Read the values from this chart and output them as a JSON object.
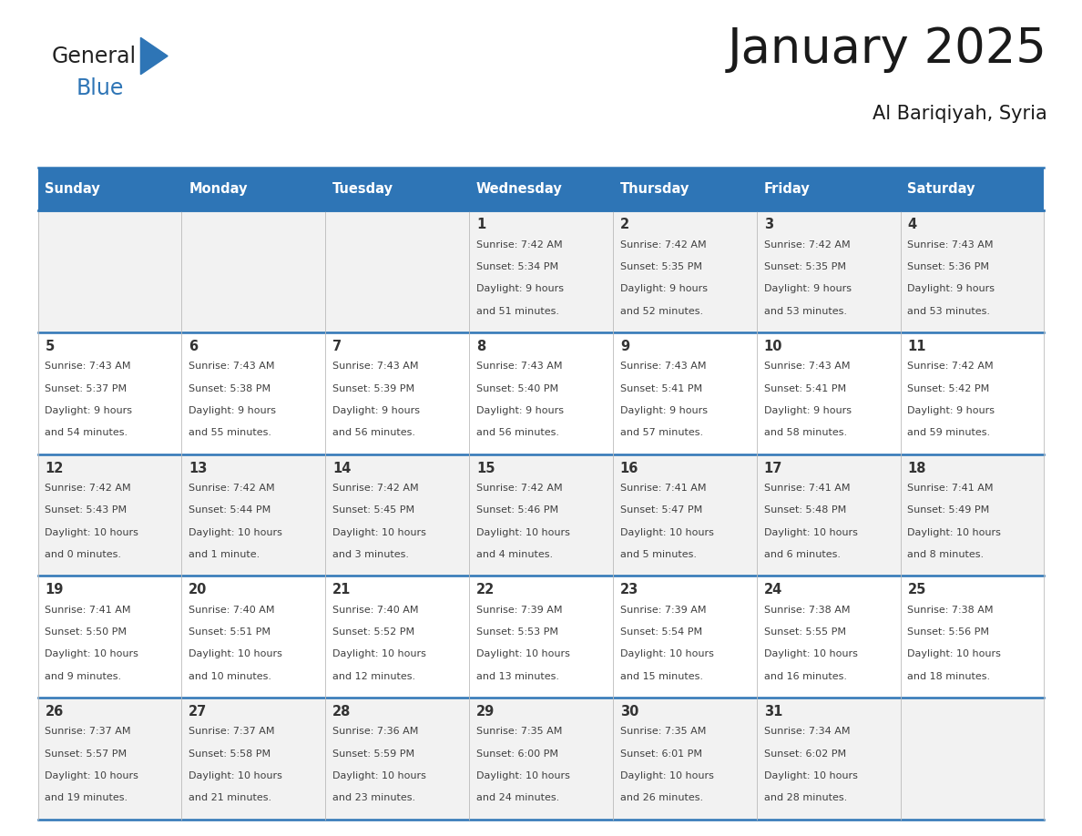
{
  "title": "January 2025",
  "subtitle": "Al Bariqiyah, Syria",
  "days_of_week": [
    "Sunday",
    "Monday",
    "Tuesday",
    "Wednesday",
    "Thursday",
    "Friday",
    "Saturday"
  ],
  "header_bg": "#2E75B6",
  "header_text": "#FFFFFF",
  "row_bg_odd": "#F2F2F2",
  "row_bg_even": "#FFFFFF",
  "border_color": "#2E75B6",
  "day_num_color": "#333333",
  "cell_text_color": "#404040",
  "calendar_data": [
    [
      null,
      null,
      null,
      {
        "day": 1,
        "sunrise": "7:42 AM",
        "sunset": "5:34 PM",
        "daylight_line1": "Daylight: 9 hours",
        "daylight_line2": "and 51 minutes."
      },
      {
        "day": 2,
        "sunrise": "7:42 AM",
        "sunset": "5:35 PM",
        "daylight_line1": "Daylight: 9 hours",
        "daylight_line2": "and 52 minutes."
      },
      {
        "day": 3,
        "sunrise": "7:42 AM",
        "sunset": "5:35 PM",
        "daylight_line1": "Daylight: 9 hours",
        "daylight_line2": "and 53 minutes."
      },
      {
        "day": 4,
        "sunrise": "7:43 AM",
        "sunset": "5:36 PM",
        "daylight_line1": "Daylight: 9 hours",
        "daylight_line2": "and 53 minutes."
      }
    ],
    [
      {
        "day": 5,
        "sunrise": "7:43 AM",
        "sunset": "5:37 PM",
        "daylight_line1": "Daylight: 9 hours",
        "daylight_line2": "and 54 minutes."
      },
      {
        "day": 6,
        "sunrise": "7:43 AM",
        "sunset": "5:38 PM",
        "daylight_line1": "Daylight: 9 hours",
        "daylight_line2": "and 55 minutes."
      },
      {
        "day": 7,
        "sunrise": "7:43 AM",
        "sunset": "5:39 PM",
        "daylight_line1": "Daylight: 9 hours",
        "daylight_line2": "and 56 minutes."
      },
      {
        "day": 8,
        "sunrise": "7:43 AM",
        "sunset": "5:40 PM",
        "daylight_line1": "Daylight: 9 hours",
        "daylight_line2": "and 56 minutes."
      },
      {
        "day": 9,
        "sunrise": "7:43 AM",
        "sunset": "5:41 PM",
        "daylight_line1": "Daylight: 9 hours",
        "daylight_line2": "and 57 minutes."
      },
      {
        "day": 10,
        "sunrise": "7:43 AM",
        "sunset": "5:41 PM",
        "daylight_line1": "Daylight: 9 hours",
        "daylight_line2": "and 58 minutes."
      },
      {
        "day": 11,
        "sunrise": "7:42 AM",
        "sunset": "5:42 PM",
        "daylight_line1": "Daylight: 9 hours",
        "daylight_line2": "and 59 minutes."
      }
    ],
    [
      {
        "day": 12,
        "sunrise": "7:42 AM",
        "sunset": "5:43 PM",
        "daylight_line1": "Daylight: 10 hours",
        "daylight_line2": "and 0 minutes."
      },
      {
        "day": 13,
        "sunrise": "7:42 AM",
        "sunset": "5:44 PM",
        "daylight_line1": "Daylight: 10 hours",
        "daylight_line2": "and 1 minute."
      },
      {
        "day": 14,
        "sunrise": "7:42 AM",
        "sunset": "5:45 PM",
        "daylight_line1": "Daylight: 10 hours",
        "daylight_line2": "and 3 minutes."
      },
      {
        "day": 15,
        "sunrise": "7:42 AM",
        "sunset": "5:46 PM",
        "daylight_line1": "Daylight: 10 hours",
        "daylight_line2": "and 4 minutes."
      },
      {
        "day": 16,
        "sunrise": "7:41 AM",
        "sunset": "5:47 PM",
        "daylight_line1": "Daylight: 10 hours",
        "daylight_line2": "and 5 minutes."
      },
      {
        "day": 17,
        "sunrise": "7:41 AM",
        "sunset": "5:48 PM",
        "daylight_line1": "Daylight: 10 hours",
        "daylight_line2": "and 6 minutes."
      },
      {
        "day": 18,
        "sunrise": "7:41 AM",
        "sunset": "5:49 PM",
        "daylight_line1": "Daylight: 10 hours",
        "daylight_line2": "and 8 minutes."
      }
    ],
    [
      {
        "day": 19,
        "sunrise": "7:41 AM",
        "sunset": "5:50 PM",
        "daylight_line1": "Daylight: 10 hours",
        "daylight_line2": "and 9 minutes."
      },
      {
        "day": 20,
        "sunrise": "7:40 AM",
        "sunset": "5:51 PM",
        "daylight_line1": "Daylight: 10 hours",
        "daylight_line2": "and 10 minutes."
      },
      {
        "day": 21,
        "sunrise": "7:40 AM",
        "sunset": "5:52 PM",
        "daylight_line1": "Daylight: 10 hours",
        "daylight_line2": "and 12 minutes."
      },
      {
        "day": 22,
        "sunrise": "7:39 AM",
        "sunset": "5:53 PM",
        "daylight_line1": "Daylight: 10 hours",
        "daylight_line2": "and 13 minutes."
      },
      {
        "day": 23,
        "sunrise": "7:39 AM",
        "sunset": "5:54 PM",
        "daylight_line1": "Daylight: 10 hours",
        "daylight_line2": "and 15 minutes."
      },
      {
        "day": 24,
        "sunrise": "7:38 AM",
        "sunset": "5:55 PM",
        "daylight_line1": "Daylight: 10 hours",
        "daylight_line2": "and 16 minutes."
      },
      {
        "day": 25,
        "sunrise": "7:38 AM",
        "sunset": "5:56 PM",
        "daylight_line1": "Daylight: 10 hours",
        "daylight_line2": "and 18 minutes."
      }
    ],
    [
      {
        "day": 26,
        "sunrise": "7:37 AM",
        "sunset": "5:57 PM",
        "daylight_line1": "Daylight: 10 hours",
        "daylight_line2": "and 19 minutes."
      },
      {
        "day": 27,
        "sunrise": "7:37 AM",
        "sunset": "5:58 PM",
        "daylight_line1": "Daylight: 10 hours",
        "daylight_line2": "and 21 minutes."
      },
      {
        "day": 28,
        "sunrise": "7:36 AM",
        "sunset": "5:59 PM",
        "daylight_line1": "Daylight: 10 hours",
        "daylight_line2": "and 23 minutes."
      },
      {
        "day": 29,
        "sunrise": "7:35 AM",
        "sunset": "6:00 PM",
        "daylight_line1": "Daylight: 10 hours",
        "daylight_line2": "and 24 minutes."
      },
      {
        "day": 30,
        "sunrise": "7:35 AM",
        "sunset": "6:01 PM",
        "daylight_line1": "Daylight: 10 hours",
        "daylight_line2": "and 26 minutes."
      },
      {
        "day": 31,
        "sunrise": "7:34 AM",
        "sunset": "6:02 PM",
        "daylight_line1": "Daylight: 10 hours",
        "daylight_line2": "and 28 minutes."
      },
      null
    ]
  ]
}
